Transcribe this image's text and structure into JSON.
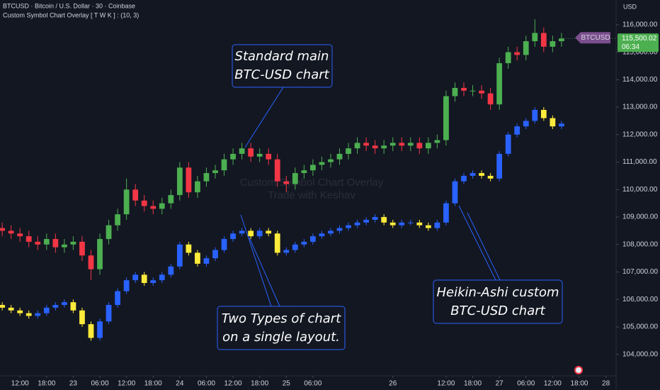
{
  "chart_data": {
    "type": "candlestick",
    "title": "BTCUSD · Bitcoin / U.S. Dollar · 30 · Coinbase",
    "subtitle": "Custom Symbol Chart Overlay [ T W K ] : (10, 3)",
    "currency": "USD",
    "watermark": [
      "Custom Symbol Chart Overlay",
      "Trade with Keshav"
    ],
    "annotations": [
      {
        "lines": [
          "Standard main",
          "BTC-USD chart"
        ]
      },
      {
        "lines": [
          "Two Types of chart",
          "on a single layout."
        ]
      },
      {
        "lines": [
          "Heikin-Ashi custom",
          "BTC-USD chart"
        ]
      }
    ],
    "last_price_label": "115,500.02",
    "countdown": "06:34",
    "xlim": [
      7.5,
      146.3
    ],
    "ylim": [
      103220,
      116900
    ],
    "xticks": [
      {
        "value": 12,
        "label": "12:00"
      },
      {
        "value": 18,
        "label": "18:00"
      },
      {
        "value": 24,
        "label": "23"
      },
      {
        "value": 30,
        "label": "06:00"
      },
      {
        "value": 36,
        "label": "12:00"
      },
      {
        "value": 42,
        "label": "18:00"
      },
      {
        "value": 48,
        "label": "24"
      },
      {
        "value": 54,
        "label": "06:00"
      },
      {
        "value": 60,
        "label": "12:00"
      },
      {
        "value": 66,
        "label": "18:00"
      },
      {
        "value": 72,
        "label": "25"
      },
      {
        "value": 78,
        "label": "06:00"
      },
      {
        "value": 96,
        "label": "26"
      },
      {
        "value": 108,
        "label": "12:00"
      },
      {
        "value": 114,
        "label": "18:00"
      },
      {
        "value": 120,
        "label": "27"
      },
      {
        "value": 126,
        "label": "06:00"
      },
      {
        "value": 132,
        "label": "12:00"
      },
      {
        "value": 138,
        "label": "18:00"
      },
      {
        "value": 144,
        "label": "28"
      }
    ],
    "yticks": [
      {
        "value": 104000,
        "label": "104,000.00"
      },
      {
        "value": 105000,
        "label": "105,000.00"
      },
      {
        "value": 106000,
        "label": "106,000.00"
      },
      {
        "value": 107000,
        "label": "107,000.00"
      },
      {
        "value": 108000,
        "label": "108,000.00"
      },
      {
        "value": 109000,
        "label": "109,000.00"
      },
      {
        "value": 110000,
        "label": "110,000.00"
      },
      {
        "value": 111000,
        "label": "111,000.00"
      },
      {
        "value": 112000,
        "label": "112,000.00"
      },
      {
        "value": 113000,
        "label": "113,000.00"
      },
      {
        "value": 114000,
        "label": "114,000.00"
      },
      {
        "value": 115000,
        "label": "115,000.00"
      },
      {
        "value": 116000,
        "label": "116,000.00"
      }
    ],
    "grid": false,
    "x": [
      8,
      10,
      12,
      14,
      16,
      18,
      20,
      22,
      24,
      26,
      28,
      30,
      32,
      34,
      36,
      38,
      40,
      42,
      44,
      46,
      48,
      50,
      52,
      54,
      56,
      58,
      60,
      62,
      64,
      66,
      68,
      70,
      72,
      74,
      76,
      78,
      80,
      82,
      84,
      86,
      88,
      90,
      92,
      94,
      96,
      98,
      100,
      102,
      104,
      106,
      108,
      110,
      112,
      114,
      116,
      118,
      120,
      122,
      124,
      126,
      128,
      130,
      132,
      134
    ],
    "series": [
      {
        "name": "BTCUSD",
        "up_color": "#4caf50",
        "down_color": "#f23645",
        "tag_color": "#7b4f8e",
        "open": [
          108600,
          108500,
          108400,
          108300,
          108100,
          108000,
          108200,
          107900,
          108000,
          108100,
          107600,
          107100,
          108200,
          108700,
          109100,
          110000,
          109600,
          109400,
          109300,
          109500,
          109800,
          110800,
          109900,
          110300,
          110600,
          110700,
          111100,
          111300,
          111500,
          111200,
          111300,
          111100,
          110300,
          110200,
          110600,
          110700,
          110900,
          111000,
          111100,
          111300,
          111500,
          111700,
          111600,
          111500,
          111600,
          111700,
          111600,
          111700,
          111500,
          111700,
          111800,
          113400,
          113700,
          113600,
          113600,
          113500,
          113100,
          114600,
          115000,
          114900,
          115400,
          115700,
          115200,
          115400
        ],
        "high": [
          108800,
          108700,
          108600,
          108500,
          108300,
          108400,
          108400,
          108200,
          108300,
          108300,
          107800,
          108400,
          108900,
          109300,
          110400,
          110200,
          109800,
          109600,
          109700,
          110000,
          111000,
          111000,
          110500,
          110800,
          110900,
          111300,
          111500,
          111700,
          111700,
          111500,
          111500,
          111300,
          110500,
          110800,
          110900,
          111100,
          111200,
          111300,
          111500,
          111700,
          111900,
          111900,
          111800,
          111800,
          111900,
          111900,
          111900,
          111900,
          111900,
          112000,
          113600,
          113900,
          113900,
          113800,
          113800,
          113700,
          114800,
          115200,
          115200,
          115600,
          116200,
          115900,
          115600,
          115700
        ],
        "low": [
          108300,
          108200,
          108100,
          107900,
          107800,
          107800,
          107700,
          107700,
          107800,
          107400,
          106700,
          106900,
          108000,
          108500,
          108900,
          109400,
          109200,
          109100,
          109100,
          109300,
          109600,
          109700,
          109700,
          110100,
          110400,
          110500,
          110900,
          111100,
          111000,
          111000,
          110900,
          110100,
          109900,
          110000,
          110400,
          110500,
          110700,
          110800,
          110900,
          111100,
          111300,
          111400,
          111300,
          111300,
          111400,
          111400,
          111400,
          111300,
          111300,
          111500,
          111600,
          113200,
          113400,
          113400,
          113300,
          112900,
          112900,
          114400,
          114700,
          114700,
          115200,
          115000,
          115000,
          115200
        ],
        "close": [
          108500,
          108400,
          108300,
          108100,
          108000,
          108200,
          107900,
          108000,
          108100,
          107600,
          107100,
          108200,
          108700,
          109100,
          110000,
          109600,
          109400,
          109300,
          109500,
          109800,
          110800,
          109900,
          110300,
          110600,
          110700,
          111100,
          111300,
          111500,
          111200,
          111300,
          111100,
          110300,
          110200,
          110600,
          110700,
          110900,
          111000,
          111100,
          111300,
          111500,
          111700,
          111600,
          111500,
          111600,
          111700,
          111600,
          111700,
          111500,
          111700,
          111800,
          113400,
          113700,
          113600,
          113600,
          113500,
          113100,
          114600,
          115000,
          114900,
          115400,
          115700,
          115200,
          115400,
          115500
        ]
      },
      {
        "up_color": "#2962ff",
        "down_color": "#ffeb3b",
        "open": [
          105800,
          105700,
          105600,
          105500,
          105400,
          105500,
          105700,
          105800,
          105900,
          105600,
          105100,
          104600,
          105200,
          105800,
          106300,
          106700,
          106900,
          106600,
          106700,
          106900,
          107200,
          108000,
          107700,
          107300,
          107500,
          107800,
          108200,
          108400,
          108500,
          108300,
          108500,
          108400,
          107700,
          107800,
          108000,
          108100,
          108300,
          108400,
          108500,
          108600,
          108700,
          108800,
          108900,
          109000,
          108800,
          108700,
          108800,
          108800,
          108700,
          108600,
          108800,
          109500,
          110300,
          110500,
          110600,
          110500,
          110400,
          111300,
          112000,
          112300,
          112500,
          112900,
          112600,
          112300
        ],
        "high": [
          105900,
          105800,
          105700,
          105600,
          105600,
          105800,
          105900,
          106000,
          106000,
          105700,
          105200,
          105300,
          105900,
          106400,
          106800,
          107000,
          107000,
          106800,
          107000,
          107300,
          108100,
          108100,
          107800,
          107600,
          107900,
          108300,
          108500,
          108600,
          108600,
          108600,
          108600,
          108500,
          107900,
          108100,
          108200,
          108400,
          108500,
          108600,
          108700,
          108800,
          108900,
          109000,
          109100,
          109100,
          108900,
          108900,
          108900,
          108900,
          108800,
          108900,
          109600,
          110400,
          110600,
          110700,
          110700,
          110600,
          111400,
          112100,
          112400,
          112600,
          113000,
          113000,
          112700,
          112500
        ],
        "low": [
          105600,
          105500,
          105400,
          105300,
          105300,
          105400,
          105600,
          105700,
          105500,
          105000,
          104500,
          104500,
          105100,
          105700,
          106200,
          106600,
          106500,
          106500,
          106600,
          106800,
          107100,
          107600,
          107200,
          107200,
          107400,
          107700,
          108100,
          108300,
          108200,
          108200,
          108300,
          107600,
          107600,
          107700,
          107900,
          108000,
          108200,
          108300,
          108400,
          108500,
          108600,
          108700,
          108800,
          108700,
          108600,
          108600,
          108700,
          108600,
          108500,
          108500,
          108700,
          109400,
          110200,
          110400,
          110400,
          110300,
          110300,
          111200,
          111900,
          112200,
          112400,
          112500,
          112200,
          112200
        ],
        "close": [
          105700,
          105600,
          105500,
          105400,
          105500,
          105700,
          105800,
          105900,
          105600,
          105100,
          104600,
          105200,
          105800,
          106300,
          106700,
          106900,
          106600,
          106700,
          106900,
          107200,
          108000,
          107700,
          107300,
          107500,
          107800,
          108200,
          108400,
          108500,
          108300,
          108500,
          108400,
          107700,
          107800,
          108000,
          108100,
          108300,
          108400,
          108500,
          108600,
          108700,
          108800,
          108900,
          109000,
          108800,
          108700,
          108800,
          108800,
          108700,
          108600,
          108800,
          109500,
          110300,
          110500,
          110600,
          110500,
          110400,
          111300,
          112000,
          112300,
          112500,
          112900,
          112600,
          112300,
          112400
        ]
      }
    ]
  }
}
